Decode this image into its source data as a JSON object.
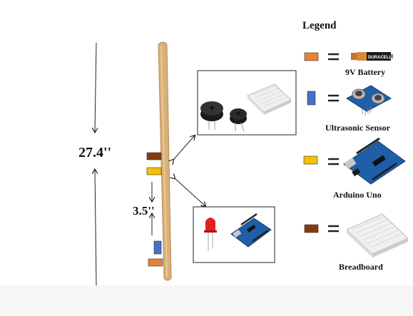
{
  "dimensions": {
    "total_height": "27.4''",
    "spacing": "3.5''"
  },
  "legend": {
    "title": "Legend",
    "equals": "=",
    "items": [
      {
        "label": "9V Battery",
        "color": "#e8823a",
        "icon": "battery-icon",
        "brand": "DURACELL"
      },
      {
        "label": "Ultrasonic Sensor",
        "color": "#4472c4",
        "icon": "ultrasonic-sensor-icon"
      },
      {
        "label": "Arduino Uno",
        "color": "#f5c000",
        "icon": "arduino-uno-icon"
      },
      {
        "label": "Breadboard",
        "color": "#843c0c",
        "icon": "breadboard-icon"
      }
    ]
  },
  "colors": {
    "pole": "#d9b07a",
    "pole_shadow": "#b88c55",
    "box_border": "#222222",
    "arrow": "#222222",
    "board_blue": "#1e5fa8",
    "led_red": "#e02020"
  }
}
